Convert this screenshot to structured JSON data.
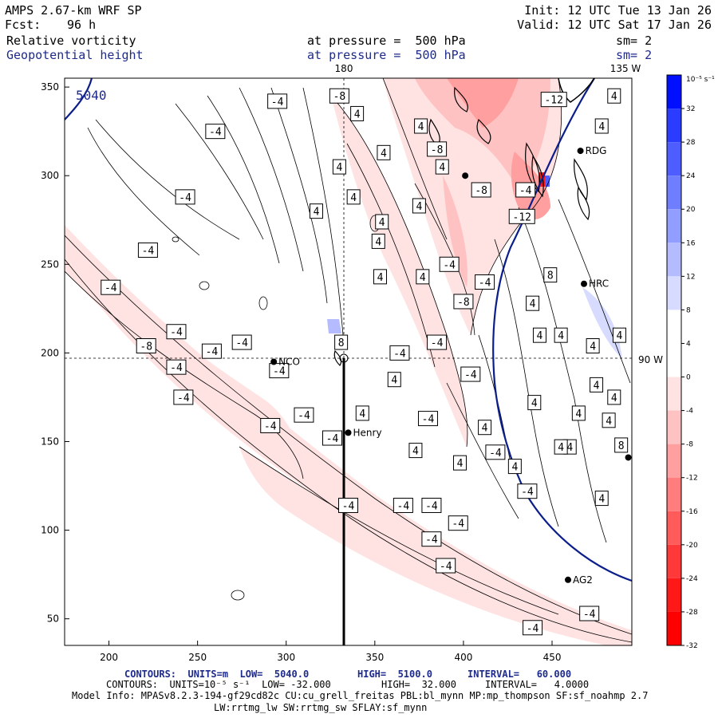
{
  "header": {
    "model": "AMPS 2.67-km WRF SP",
    "fcst_label": "Fcst:",
    "fcst_value": "96 h",
    "init": "Init: 12 UTC Tue 13 Jan 26",
    "valid": "Valid: 12 UTC Sat 17 Jan 26",
    "field1_name": "Relative vorticity",
    "field1_level": "at pressure =  500 hPa",
    "field1_sm": "sm= 2",
    "field2_name": "Geopotential height",
    "field2_level": "at pressure =  500 hPa",
    "field2_sm": "sm= 2"
  },
  "map": {
    "x_ticks": [
      "200",
      "250",
      "300",
      "350",
      "400",
      "450"
    ],
    "y_ticks": [
      "350",
      "300",
      "250",
      "200",
      "150",
      "100",
      "50"
    ],
    "ref_labels": {
      "lon_180": "180",
      "lon_135w": "135 W",
      "lon_90w": "90 W"
    },
    "height_contour_label": "5040",
    "stations": [
      {
        "name": "NCO",
        "x": 293,
        "y": 195
      },
      {
        "name": "Henry",
        "x": 335,
        "y": 155
      },
      {
        "name": "RDG",
        "x": 466,
        "y": 314
      },
      {
        "name": "HRC",
        "x": 468,
        "y": 239
      },
      {
        "name": "AG2",
        "x": 459,
        "y": 72
      },
      {
        "name": "",
        "x": 401,
        "y": 300
      },
      {
        "name": "",
        "x": 493,
        "y": 141
      }
    ],
    "contour_labels": [
      {
        "text": "-4",
        "x": 295,
        "y": 342
      },
      {
        "text": "-4",
        "x": 260,
        "y": 325
      },
      {
        "text": "4",
        "x": 340,
        "y": 335
      },
      {
        "text": "-8",
        "x": 330,
        "y": 345
      },
      {
        "text": "-8",
        "x": 385,
        "y": 315
      },
      {
        "text": "-12",
        "x": 451,
        "y": 343
      },
      {
        "text": "4",
        "x": 485,
        "y": 345
      },
      {
        "text": "4",
        "x": 478,
        "y": 328
      },
      {
        "text": "4",
        "x": 376,
        "y": 328
      },
      {
        "text": "4",
        "x": 355,
        "y": 313
      },
      {
        "text": "4",
        "x": 330,
        "y": 305
      },
      {
        "text": "4",
        "x": 388,
        "y": 305
      },
      {
        "text": "-4",
        "x": 243,
        "y": 288
      },
      {
        "text": "4",
        "x": 338,
        "y": 288
      },
      {
        "text": "4",
        "x": 375,
        "y": 283
      },
      {
        "text": "4",
        "x": 317,
        "y": 280
      },
      {
        "text": "4",
        "x": 354,
        "y": 274
      },
      {
        "text": "-8",
        "x": 410,
        "y": 292
      },
      {
        "text": "-4",
        "x": 435,
        "y": 292
      },
      {
        "text": "-12",
        "x": 433,
        "y": 277
      },
      {
        "text": "-4",
        "x": 222,
        "y": 258
      },
      {
        "text": "4",
        "x": 352,
        "y": 263
      },
      {
        "text": "4",
        "x": 353,
        "y": 243
      },
      {
        "text": "4",
        "x": 377,
        "y": 243
      },
      {
        "text": "-4",
        "x": 392,
        "y": 250
      },
      {
        "text": "-4",
        "x": 412,
        "y": 240
      },
      {
        "text": "8",
        "x": 449,
        "y": 244
      },
      {
        "text": "-4",
        "x": 201,
        "y": 237
      },
      {
        "text": "-8",
        "x": 400,
        "y": 229
      },
      {
        "text": "4",
        "x": 439,
        "y": 228
      },
      {
        "text": "-4",
        "x": 238,
        "y": 212
      },
      {
        "text": "-4",
        "x": 258,
        "y": 201
      },
      {
        "text": "-8",
        "x": 221,
        "y": 204
      },
      {
        "text": "-4",
        "x": 275,
        "y": 206
      },
      {
        "text": "8",
        "x": 331,
        "y": 206
      },
      {
        "text": "-4",
        "x": 364,
        "y": 200
      },
      {
        "text": "-4",
        "x": 385,
        "y": 206
      },
      {
        "text": "4",
        "x": 443,
        "y": 210
      },
      {
        "text": "4",
        "x": 455,
        "y": 210
      },
      {
        "text": "4",
        "x": 473,
        "y": 204
      },
      {
        "text": "4",
        "x": 488,
        "y": 210
      },
      {
        "text": "-4",
        "x": 238,
        "y": 192
      },
      {
        "text": "-4",
        "x": 296,
        "y": 190
      },
      {
        "text": "4",
        "x": 361,
        "y": 185
      },
      {
        "text": "-4",
        "x": 404,
        "y": 188
      },
      {
        "text": "4",
        "x": 475,
        "y": 182
      },
      {
        "text": "-4",
        "x": 242,
        "y": 175
      },
      {
        "text": "4",
        "x": 440,
        "y": 172
      },
      {
        "text": "4",
        "x": 465,
        "y": 166
      },
      {
        "text": "-4",
        "x": 310,
        "y": 165
      },
      {
        "text": "4",
        "x": 343,
        "y": 166
      },
      {
        "text": "-4",
        "x": 380,
        "y": 163
      },
      {
        "text": "-4",
        "x": 291,
        "y": 159
      },
      {
        "text": "-4",
        "x": 326,
        "y": 152
      },
      {
        "text": "4",
        "x": 412,
        "y": 158
      },
      {
        "text": "4",
        "x": 485,
        "y": 175
      },
      {
        "text": "4",
        "x": 482,
        "y": 162
      },
      {
        "text": "4",
        "x": 460,
        "y": 147
      },
      {
        "text": "4",
        "x": 373,
        "y": 145
      },
      {
        "text": "-4",
        "x": 418,
        "y": 144
      },
      {
        "text": "4",
        "x": 398,
        "y": 138
      },
      {
        "text": "4",
        "x": 429,
        "y": 136
      },
      {
        "text": "4",
        "x": 455,
        "y": 147
      },
      {
        "text": "8",
        "x": 489,
        "y": 148
      },
      {
        "text": "-4",
        "x": 436,
        "y": 122
      },
      {
        "text": "4",
        "x": 478,
        "y": 118
      },
      {
        "text": "-4",
        "x": 335,
        "y": 114
      },
      {
        "text": "-4",
        "x": 366,
        "y": 114
      },
      {
        "text": "-4",
        "x": 382,
        "y": 114
      },
      {
        "text": "-4",
        "x": 397,
        "y": 104
      },
      {
        "text": "-4",
        "x": 382,
        "y": 95
      },
      {
        "text": "-4",
        "x": 390,
        "y": 80
      },
      {
        "text": "-4",
        "x": 439,
        "y": 45
      },
      {
        "text": "-4",
        "x": 471,
        "y": 53
      }
    ]
  },
  "colorbar": {
    "unit": "10⁻⁵ s⁻¹",
    "ticks": [
      "32",
      "28",
      "24",
      "20",
      "16",
      "12",
      "8",
      "4",
      "0",
      "-4",
      "-8",
      "-12",
      "-16",
      "-20",
      "-24",
      "-28",
      "-32"
    ],
    "colors": [
      "#0010ff",
      "#2a3cff",
      "#4d5dff",
      "#6f7eff",
      "#929eff",
      "#b4bcff",
      "#d6dbff",
      "#ffffff",
      "#ffffff",
      "#ffe2e2",
      "#ffc2c2",
      "#ff9f9f",
      "#ff7d7d",
      "#ff5b5b",
      "#ff3939",
      "#ff1818",
      "#ff0000"
    ]
  },
  "footer": {
    "line1_prefix": "CONTOURS:  UNITS=m  LOW=  5040.0",
    "line1_high": "HIGH=  5100.0",
    "line1_interval": "INTERVAL=   60.000",
    "line2_prefix": "CONTOURS:  UNITS=10⁻⁵ s⁻¹  LOW= -32.000",
    "line2_high": "HIGH=  32.000",
    "line2_interval": "INTERVAL=   4.0000",
    "line3": "Model Info: MPASv8.2.3-194-gf29cd82c CU:cu_grell_freitas PBL:bl_mynn MP:mp_thompson SF:sf_noahmp 2.7",
    "line4": "LW:rrtmg_lw SW:rrtmg_sw SFLAY:sf_mynn"
  },
  "colors": {
    "height_contour": "#0b1e8a",
    "text_blue": "#1e2a8c"
  }
}
